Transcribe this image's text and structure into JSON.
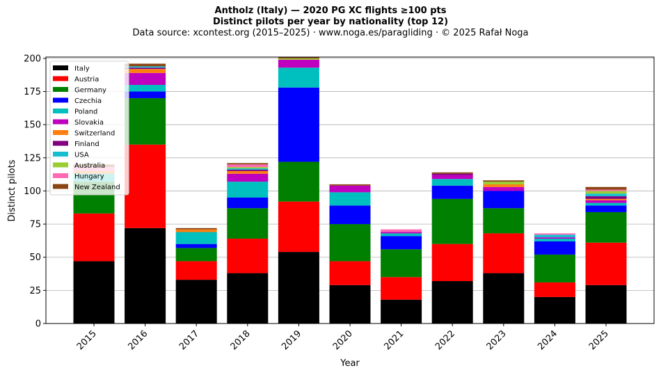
{
  "chart_data": {
    "type": "bar",
    "stacked": true,
    "title": "Antholz (Italy)  —  2020 PG XC flights ≥100 pts",
    "title2": "Distinct pilots per year by nationality (top 12)",
    "subtitle": "Data source: xcontest.org (2015–2025)  ·  www.noga.es/paragliding  ·  © 2025 Rafał Noga",
    "xlabel": "Year",
    "ylabel": "Distinct pilots",
    "ylim": [
      0,
      201
    ],
    "yticks": [
      0,
      25,
      50,
      75,
      100,
      125,
      150,
      175,
      200
    ],
    "grid": "y",
    "legend_position": "top-left",
    "categories": [
      "2015",
      "2016",
      "2017",
      "2018",
      "2019",
      "2020",
      "2021",
      "2022",
      "2023",
      "2024",
      "2025"
    ],
    "series": [
      {
        "name": "Italy",
        "color": "#000000",
        "values": [
          47,
          72,
          33,
          38,
          54,
          29,
          18,
          32,
          38,
          20,
          29
        ]
      },
      {
        "name": "Austria",
        "color": "#ff0000",
        "values": [
          36,
          63,
          14,
          26,
          38,
          18,
          17,
          28,
          30,
          11,
          32
        ]
      },
      {
        "name": "Germany",
        "color": "#008000",
        "values": [
          24,
          35,
          10,
          23,
          30,
          28,
          21,
          34,
          19,
          21,
          23
        ]
      },
      {
        "name": "Czechia",
        "color": "#0000ff",
        "values": [
          0,
          5,
          3,
          8,
          56,
          14,
          10,
          10,
          13,
          10,
          5
        ]
      },
      {
        "name": "Poland",
        "color": "#00bfbf",
        "values": [
          6,
          5,
          9,
          12,
          15,
          10,
          2,
          5,
          0,
          2,
          2
        ]
      },
      {
        "name": "Slovakia",
        "color": "#bf00bf",
        "values": [
          0,
          9,
          0,
          6,
          6,
          5,
          1,
          3,
          3,
          1,
          2
        ]
      },
      {
        "name": "Switzerland",
        "color": "#ff7f0e",
        "values": [
          2,
          3,
          2,
          2,
          0,
          0,
          0,
          0,
          2,
          0,
          1
        ]
      },
      {
        "name": "Finland",
        "color": "#800080",
        "values": [
          0,
          1,
          0,
          1,
          0,
          0,
          0,
          1,
          0,
          0,
          2
        ]
      },
      {
        "name": "USA",
        "color": "#17becf",
        "values": [
          0,
          1,
          0,
          1,
          0,
          0,
          0,
          0,
          0,
          2,
          2
        ]
      },
      {
        "name": "Australia",
        "color": "#9acd32",
        "values": [
          0,
          0,
          0,
          1,
          1,
          0,
          0,
          0,
          2,
          0,
          2
        ]
      },
      {
        "name": "Hungary",
        "color": "#ff69b4",
        "values": [
          3,
          0,
          0,
          2,
          0,
          0,
          2,
          0,
          0,
          1,
          1
        ]
      },
      {
        "name": "New Zealand",
        "color": "#8b4513",
        "values": [
          2,
          2,
          1,
          1,
          1,
          1,
          0,
          1,
          1,
          0,
          2
        ]
      }
    ]
  }
}
